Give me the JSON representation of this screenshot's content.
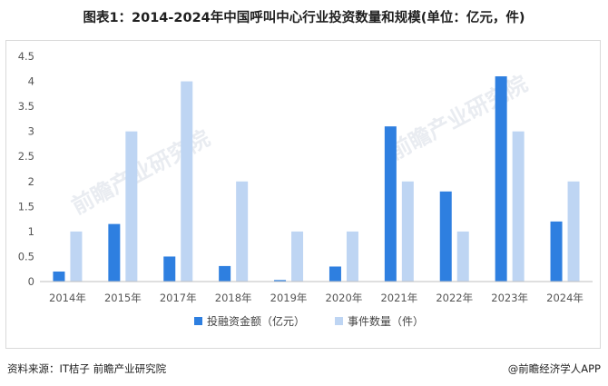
{
  "title": "图表1：2014-2024年中国呼叫中心行业投资数量和规模(单位：亿元，件)",
  "footer": {
    "source": "资料来源：IT桔子 前瞻产业研究院",
    "brand": "@前瞻经济学人APP"
  },
  "watermark": "前瞻产业研究院",
  "chart_data": {
    "type": "bar",
    "title": "图表1：2014-2024年中国呼叫中心行业投资数量和规模(单位：亿元，件)",
    "categories": [
      "2014年",
      "2015年",
      "2017年",
      "2018年",
      "2019年",
      "2020年",
      "2021年",
      "2022年",
      "2023年",
      "2024年"
    ],
    "series": [
      {
        "name": "投融资金额（亿元）",
        "color": "#2e7fe0",
        "values": [
          0.2,
          1.15,
          0.5,
          0.31,
          0.03,
          0.3,
          3.1,
          1.8,
          4.1,
          1.2
        ]
      },
      {
        "name": "事件数量（件）",
        "color": "#bed5f3",
        "values": [
          1,
          3,
          4,
          2,
          1,
          1,
          2,
          1,
          3,
          2
        ]
      }
    ],
    "yticks": [
      "0",
      "0.5",
      "1",
      "1.5",
      "2",
      "2.5",
      "3",
      "3.5",
      "4",
      "4.5"
    ],
    "ylim": [
      0,
      4.5
    ],
    "grid": false,
    "legend": "bottom-center"
  }
}
